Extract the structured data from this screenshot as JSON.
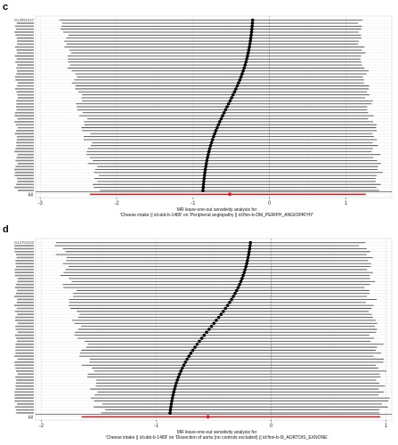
{
  "chart_data": [
    {
      "panel_label": "c",
      "type": "forest",
      "orientation": "horizontal",
      "xlabel_line1": "MR leave-one-out sensitivity analysis for",
      "xlabel_line2": "'Cheese intake || id:ukb-b-1489' on 'Peripheral angiopathy || id:finn-b-DM_PERIPH_ANGIOPATHY'",
      "xticks": [
        -3,
        -2,
        -1,
        0,
        1
      ],
      "xlim": [
        -3.06,
        1.6
      ],
      "n_snps": 58,
      "first_snp_label": "rs12951027",
      "overall_label": "All",
      "estimate_range": [
        -0.87,
        -0.22
      ],
      "lower_ci_range": [
        -2.82,
        -2.14
      ],
      "upper_ci_range": [
        1.12,
        1.52
      ],
      "overall": {
        "estimate": -0.52,
        "lower": -2.35,
        "upper": 1.26
      },
      "point_color": "#000000",
      "ci_color": "#4d4d4d",
      "overall_color": "#e41a1c",
      "grid": true,
      "zero_line": true
    },
    {
      "panel_label": "d",
      "type": "forest",
      "orientation": "horizontal",
      "xlabel_line1": "MR leave-one-out sensitivity analysis for",
      "xlabel_line2": "'Cheese intake || id:ukb-b-1489' on 'Dissection of aorta (no controls excluded) || id:finn-b-I9_AORTDIS_EXNONE'",
      "xticks": [
        -2,
        -1,
        0,
        1
      ],
      "xlim": [
        -2.05,
        1.05
      ],
      "n_snps": 58,
      "first_snp_label": "rs12702343",
      "overall_label": "All",
      "estimate_range": [
        -0.88,
        -0.18
      ],
      "lower_ci_range": [
        -1.92,
        -1.42
      ],
      "upper_ci_range": [
        0.78,
        1.03
      ],
      "overall": {
        "estimate": -0.55,
        "lower": -1.65,
        "upper": 0.95
      },
      "point_color": "#000000",
      "ci_color": "#4d4d4d",
      "overall_color": "#e41a1c",
      "grid": true,
      "zero_line": true
    }
  ]
}
